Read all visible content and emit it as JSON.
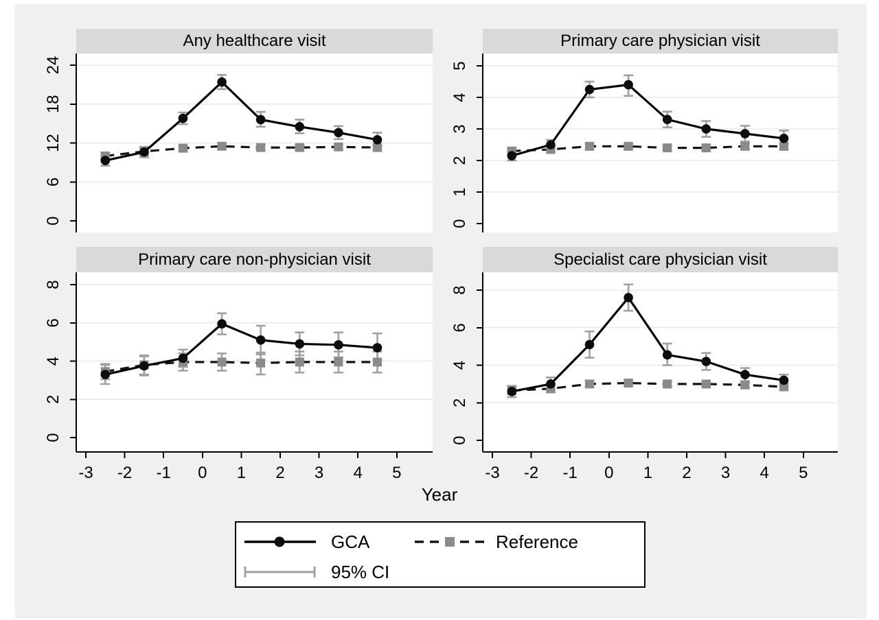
{
  "figure": {
    "xlabel": "Year",
    "x_ticks": [
      "-3",
      "-2",
      "-1",
      "0",
      "1",
      "2",
      "3",
      "4",
      "5"
    ]
  },
  "legend": {
    "items": [
      {
        "label": "GCA",
        "sample": "solid-line-circle"
      },
      {
        "label": "Reference",
        "sample": "dashed-line-square"
      },
      {
        "label": "95% CI",
        "sample": "error-bar"
      }
    ]
  },
  "colors": {
    "figure_bg": "#f0f0f0",
    "plot_bg": "#ffffff",
    "title_band": "#d9d9d9",
    "gridline": "#e8e8e8",
    "axis": "#000000",
    "gca_line": "#000000",
    "gca_marker": "#0d0d0d",
    "reference_line": "#141414",
    "reference_marker": "#8a8a8a",
    "ci": "#a0a0a0"
  },
  "chart_data": [
    {
      "type": "line",
      "title": "Any healthcare visit",
      "x": [
        -2.5,
        -1.5,
        -0.5,
        0.5,
        1.5,
        2.5,
        3.5,
        4.5
      ],
      "xlim": [
        -3.2,
        5.9
      ],
      "ylim": [
        0,
        24
      ],
      "yticks": [
        0,
        6,
        12,
        18,
        24
      ],
      "grid": true,
      "series": [
        {
          "name": "GCA",
          "values": [
            9.3,
            10.6,
            15.8,
            21.4,
            15.6,
            14.5,
            13.6,
            12.5
          ],
          "ci_low": [
            8.5,
            9.8,
            14.9,
            20.3,
            14.5,
            13.5,
            12.6,
            11.5
          ],
          "ci_high": [
            10.0,
            11.4,
            16.7,
            22.5,
            16.8,
            15.6,
            14.6,
            13.6
          ]
        },
        {
          "name": "Reference",
          "values": [
            10.0,
            10.7,
            11.2,
            11.5,
            11.3,
            11.3,
            11.4,
            11.3
          ],
          "ci_low": [
            9.5,
            10.1,
            10.8,
            11.1,
            10.9,
            10.9,
            11.0,
            10.9
          ],
          "ci_high": [
            10.5,
            11.3,
            11.6,
            11.9,
            11.7,
            11.7,
            11.8,
            11.7
          ]
        }
      ]
    },
    {
      "type": "line",
      "title": "Primary care physician visit",
      "x": [
        -2.5,
        -1.5,
        -0.5,
        0.5,
        1.5,
        2.5,
        3.5,
        4.5
      ],
      "xlim": [
        -3.2,
        5.9
      ],
      "ylim": [
        0,
        5
      ],
      "yticks": [
        0,
        1,
        2,
        3,
        4,
        5
      ],
      "grid": true,
      "series": [
        {
          "name": "GCA",
          "values": [
            2.15,
            2.5,
            4.25,
            4.4,
            3.3,
            3.0,
            2.85,
            2.7
          ],
          "ci_low": [
            2.0,
            2.35,
            4.0,
            4.05,
            3.05,
            2.75,
            2.6,
            2.5
          ],
          "ci_high": [
            2.3,
            2.65,
            4.5,
            4.7,
            3.55,
            3.25,
            3.1,
            2.95
          ]
        },
        {
          "name": "Reference",
          "values": [
            2.3,
            2.35,
            2.45,
            2.45,
            2.4,
            2.4,
            2.45,
            2.45
          ],
          "ci_low": [
            2.2,
            2.26,
            2.37,
            2.37,
            2.32,
            2.32,
            2.36,
            2.35
          ],
          "ci_high": [
            2.4,
            2.44,
            2.53,
            2.53,
            2.48,
            2.48,
            2.54,
            2.55
          ]
        }
      ]
    },
    {
      "type": "line",
      "title": "Primary care non-physician visit",
      "x": [
        -2.5,
        -1.5,
        -0.5,
        0.5,
        1.5,
        2.5,
        3.5,
        4.5
      ],
      "xlim": [
        -3.2,
        5.9
      ],
      "ylim": [
        0,
        8
      ],
      "yticks": [
        0,
        2,
        4,
        6,
        8
      ],
      "grid": true,
      "series": [
        {
          "name": "GCA",
          "values": [
            3.3,
            3.75,
            4.15,
            5.95,
            5.1,
            4.9,
            4.85,
            4.7
          ],
          "ci_low": [
            2.8,
            3.25,
            3.7,
            5.4,
            4.35,
            4.3,
            4.2,
            4.05
          ],
          "ci_high": [
            3.8,
            4.25,
            4.6,
            6.5,
            5.85,
            5.5,
            5.5,
            5.45
          ]
        },
        {
          "name": "Reference",
          "values": [
            3.45,
            3.8,
            3.95,
            3.95,
            3.9,
            3.95,
            3.95,
            3.95
          ],
          "ci_low": [
            3.05,
            3.3,
            3.5,
            3.5,
            3.3,
            3.4,
            3.4,
            3.4
          ],
          "ci_high": [
            3.85,
            4.3,
            4.4,
            4.4,
            4.45,
            4.5,
            4.5,
            4.5
          ]
        }
      ]
    },
    {
      "type": "line",
      "title": "Specialist care physician visit",
      "x": [
        -2.5,
        -1.5,
        -0.5,
        0.5,
        1.5,
        2.5,
        3.5,
        4.5
      ],
      "xlim": [
        -3.2,
        5.9
      ],
      "ylim": [
        0,
        8
      ],
      "yticks": [
        0,
        2,
        4,
        6,
        8
      ],
      "grid": true,
      "series": [
        {
          "name": "GCA",
          "values": [
            2.6,
            3.0,
            5.1,
            7.6,
            4.55,
            4.2,
            3.5,
            3.2
          ],
          "ci_low": [
            2.3,
            2.7,
            4.4,
            6.9,
            4.0,
            3.75,
            3.15,
            2.9
          ],
          "ci_high": [
            2.9,
            3.35,
            5.8,
            8.3,
            5.15,
            4.65,
            3.85,
            3.5
          ]
        },
        {
          "name": "Reference",
          "values": [
            2.65,
            2.75,
            3.0,
            3.05,
            3.0,
            3.0,
            2.95,
            2.85
          ],
          "ci_low": [
            2.45,
            2.55,
            2.85,
            2.9,
            2.85,
            2.85,
            2.8,
            2.7
          ],
          "ci_high": [
            2.85,
            2.95,
            3.15,
            3.2,
            3.15,
            3.15,
            3.1,
            3.0
          ]
        }
      ]
    }
  ]
}
